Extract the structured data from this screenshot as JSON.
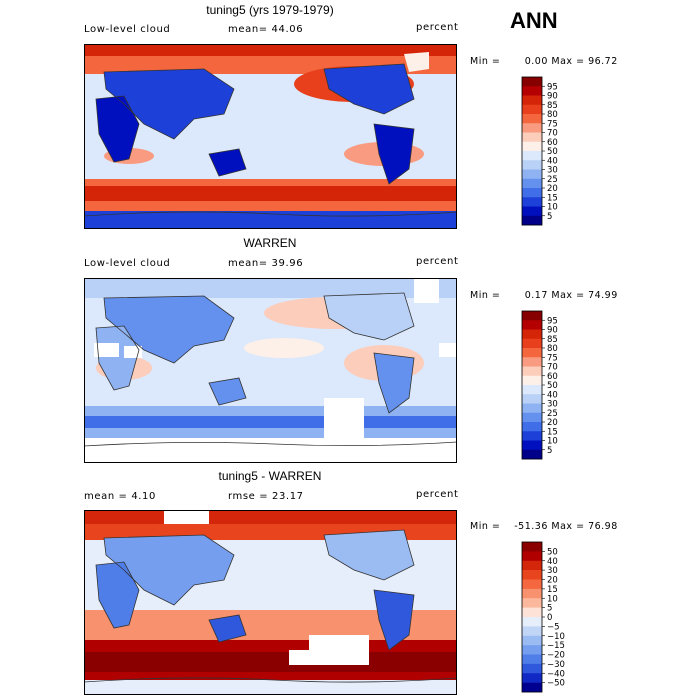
{
  "season": "ANN",
  "panels": [
    {
      "title": "tuning5 (yrs 1979-1979)",
      "left": "Low-level cloud",
      "center_label": "mean=",
      "center_value": "44.06",
      "right": "percent",
      "min_label": "Min =",
      "min": "0.00",
      "max_label": "Max =",
      "max": "96.72",
      "colorbar": [
        "95",
        "90",
        "85",
        "80",
        "75",
        "70",
        "60",
        "50",
        "40",
        "30",
        "25",
        "20",
        "15",
        "10",
        "5"
      ]
    },
    {
      "title": "WARREN",
      "left": "Low-level cloud",
      "center_label": "mean=",
      "center_value": "39.96",
      "right": "percent",
      "min_label": "Min =",
      "min": "0.17",
      "max_label": "Max =",
      "max": "74.99",
      "colorbar": [
        "95",
        "90",
        "85",
        "80",
        "75",
        "70",
        "60",
        "50",
        "40",
        "30",
        "25",
        "20",
        "15",
        "10",
        "5"
      ]
    },
    {
      "title": "tuning5 - WARREN",
      "left_label": "mean =",
      "left_value": "4.10",
      "center_label": "rmse =",
      "center_value": "23.17",
      "right": "percent",
      "min_label": "Min =",
      "min": "-51.36",
      "max_label": "Max =",
      "max": "76.98",
      "colorbar": [
        "50",
        "40",
        "30",
        "20",
        "15",
        "10",
        "5",
        "0",
        "−5",
        "−10",
        "−15",
        "−20",
        "−30",
        "−40",
        "−50"
      ]
    }
  ],
  "colors": {
    "abs_scale": [
      "#860000",
      "#b40000",
      "#d42508",
      "#e8401c",
      "#f4663e",
      "#f99b80",
      "#fccdbb",
      "#fdf0e8",
      "#dce8fb",
      "#b9d1f7",
      "#8fb2f2",
      "#6490ee",
      "#3f6ee8",
      "#1d40d8",
      "#0010bf",
      "#000088"
    ],
    "diff_scale": [
      "#8a0000",
      "#b00000",
      "#d3260a",
      "#e8451f",
      "#f4673f",
      "#f8916e",
      "#fbb89d",
      "#fde2d7",
      "#e6eefb",
      "#c1d6f7",
      "#9bbcf3",
      "#759fee",
      "#4f7ee8",
      "#2f58dc",
      "#1028c4",
      "#000090"
    ],
    "land": "#333333"
  }
}
